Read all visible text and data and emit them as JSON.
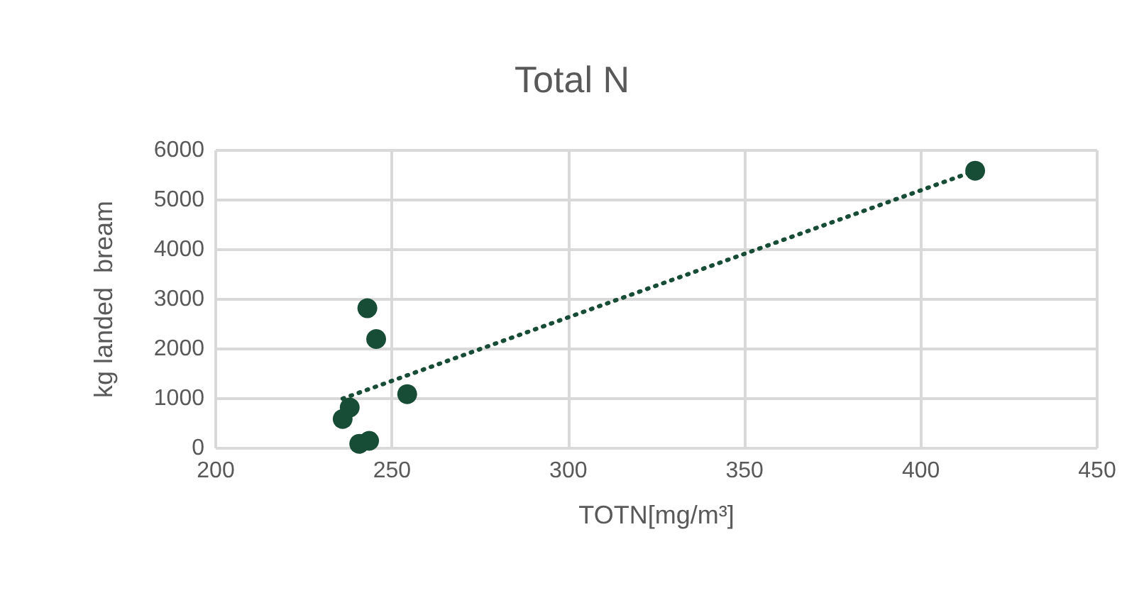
{
  "chart_data": {
    "type": "scatter",
    "title": "Total N",
    "xlabel": "TOTN[mg/m³]",
    "ylabel": "kg landed  bream",
    "series": [
      {
        "color": "#174d36",
        "x": [
          243,
          245.5,
          254.3,
          238,
          236,
          240.7,
          243.5,
          415.4
        ],
        "values": [
          2820,
          2200,
          1090,
          820,
          590,
          90,
          150,
          5590
        ]
      },
      {
        "type": "line",
        "color": "#174d36",
        "line_style": "dotted",
        "marker": "none",
        "x": [
          236,
          415.4
        ],
        "values": [
          1000,
          5590
        ]
      }
    ],
    "xlim": [
      200,
      450
    ],
    "xticks": [
      200,
      250,
      300,
      350,
      400,
      450
    ],
    "ylim": [
      0,
      6000
    ],
    "yticks": [
      0,
      1000,
      2000,
      3000,
      4000,
      5000,
      6000
    ],
    "grid": true,
    "marker": "circle"
  }
}
